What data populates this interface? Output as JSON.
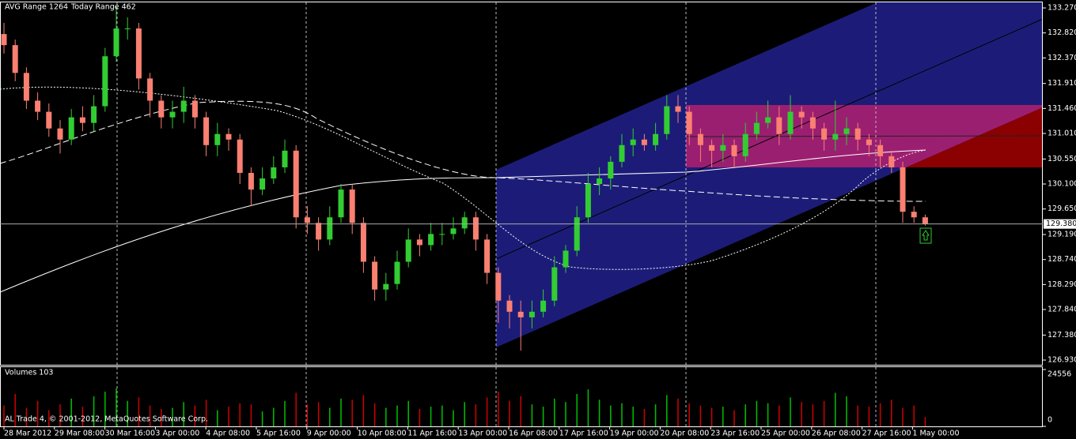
{
  "chart_data": {
    "type": "candlestick",
    "header": [
      "AVG Range 1264",
      "Today Range 462"
    ],
    "volume_title": "Volumes 103",
    "copyright": "AL Trade 4, © 2001-2012, MetaQuotes Software Corp.",
    "x_labels": [
      "28 Mar 2012",
      "29 Mar 08:00",
      "30 Mar 16:00",
      "3 Apr 00:00",
      "4 Apr 08:00",
      "5 Apr 16:00",
      "9 Apr 00:00",
      "10 Apr 08:00",
      "11 Apr 16:00",
      "13 Apr 00:00",
      "16 Apr 08:00",
      "17 Apr 16:00",
      "19 Apr 00:00",
      "20 Apr 08:00",
      "23 Apr 16:00",
      "25 Apr 00:00",
      "26 Apr 08:00",
      "27 Apr 16:00",
      "1 May 00:00"
    ],
    "open": [
      132.8,
      132.6,
      132.1,
      131.6,
      131.4,
      131.1,
      130.9,
      131.3,
      131.2,
      131.5,
      132.4,
      132.9,
      132.9,
      132.0,
      131.6,
      131.3,
      131.4,
      131.6,
      131.3,
      130.8,
      131.0,
      130.9,
      130.3,
      130.0,
      130.2,
      130.4,
      130.7,
      129.5,
      129.4,
      129.1,
      129.5,
      130.0,
      129.4,
      128.7,
      128.2,
      128.3,
      128.7,
      129.1,
      129.0,
      129.2,
      129.2,
      129.3,
      129.5,
      129.1,
      128.5,
      128.0,
      127.8,
      127.7,
      127.8,
      128.0,
      128.6,
      128.9,
      129.5,
      130.1,
      130.2,
      130.5,
      130.8,
      130.9,
      130.8,
      131.0,
      131.5,
      131.4,
      131.0,
      130.8,
      130.7,
      130.8,
      130.6,
      131.0,
      131.2,
      131.3,
      131.0,
      131.4,
      131.3,
      131.1,
      130.9,
      131.0,
      131.1,
      130.9,
      130.8,
      130.6,
      130.4,
      129.6,
      129.5
    ],
    "high": [
      133.0,
      132.7,
      132.2,
      131.75,
      131.55,
      131.25,
      131.45,
      131.5,
      131.7,
      132.55,
      133.3,
      133.1,
      133.0,
      132.1,
      131.7,
      131.6,
      131.85,
      131.7,
      131.4,
      131.2,
      131.1,
      131.0,
      130.4,
      130.4,
      130.6,
      130.9,
      130.8,
      129.7,
      129.5,
      129.7,
      130.1,
      130.1,
      129.5,
      128.8,
      128.5,
      128.9,
      129.3,
      129.2,
      129.4,
      129.4,
      129.5,
      129.6,
      129.6,
      129.2,
      128.6,
      128.1,
      128.0,
      128.0,
      128.2,
      128.8,
      129.0,
      129.7,
      130.3,
      130.4,
      130.6,
      131.0,
      131.1,
      131.0,
      131.2,
      131.7,
      131.7,
      131.5,
      131.1,
      130.9,
      131.0,
      130.9,
      131.2,
      131.4,
      131.6,
      131.5,
      131.7,
      131.5,
      131.4,
      131.2,
      131.6,
      131.3,
      131.2,
      131.0,
      130.9,
      130.7,
      130.5,
      129.7,
      129.55
    ],
    "low": [
      132.45,
      131.95,
      131.45,
      131.25,
      130.95,
      130.65,
      130.8,
      131.05,
      131.05,
      131.4,
      132.3,
      132.7,
      131.8,
      131.3,
      131.1,
      131.1,
      131.2,
      131.1,
      130.6,
      130.6,
      130.7,
      130.1,
      129.7,
      129.9,
      130.1,
      130.3,
      129.3,
      129.2,
      128.9,
      129.0,
      129.4,
      129.2,
      128.5,
      128.0,
      128.0,
      128.2,
      128.6,
      128.8,
      128.9,
      129.0,
      129.1,
      129.2,
      128.9,
      128.3,
      127.6,
      127.5,
      127.1,
      127.5,
      127.7,
      127.9,
      128.5,
      128.8,
      129.4,
      129.9,
      130.0,
      130.4,
      130.6,
      130.7,
      130.7,
      130.9,
      131.2,
      130.8,
      130.5,
      130.4,
      130.5,
      130.4,
      130.5,
      130.9,
      131.1,
      130.8,
      130.9,
      131.1,
      130.9,
      130.7,
      130.7,
      130.8,
      130.7,
      130.6,
      130.4,
      130.3,
      129.4,
      129.4,
      129.35
    ],
    "close": [
      132.6,
      132.1,
      131.6,
      131.4,
      131.1,
      130.9,
      131.3,
      131.2,
      131.5,
      132.4,
      132.9,
      132.9,
      132.0,
      131.6,
      131.3,
      131.4,
      131.6,
      131.3,
      130.8,
      131.0,
      130.9,
      130.3,
      130.0,
      130.2,
      130.4,
      130.7,
      129.5,
      129.4,
      129.1,
      129.5,
      130.0,
      129.4,
      128.7,
      128.2,
      128.3,
      128.7,
      129.1,
      129.0,
      129.2,
      129.2,
      129.3,
      129.5,
      129.1,
      128.5,
      128.0,
      127.8,
      127.7,
      127.8,
      128.0,
      128.6,
      128.9,
      129.5,
      130.1,
      130.2,
      130.5,
      130.8,
      130.9,
      130.8,
      131.0,
      131.5,
      131.4,
      131.0,
      130.8,
      130.7,
      130.8,
      130.6,
      131.0,
      131.2,
      131.3,
      131.0,
      131.4,
      131.3,
      131.1,
      130.9,
      131.0,
      131.1,
      130.9,
      130.8,
      130.6,
      130.4,
      129.6,
      129.5,
      129.38
    ],
    "volume": [
      9000,
      14000,
      8000,
      11000,
      7000,
      9500,
      12000,
      8500,
      13000,
      15000,
      16500,
      11000,
      12500,
      9000,
      7500,
      8000,
      10500,
      9000,
      11500,
      7000,
      8500,
      10000,
      9500,
      6500,
      8000,
      11000,
      14500,
      9500,
      10500,
      8000,
      12000,
      11500,
      13500,
      10000,
      8000,
      9000,
      11000,
      7500,
      8500,
      9000,
      7000,
      10500,
      9500,
      12500,
      15000,
      11000,
      13000,
      9500,
      8500,
      12000,
      10500,
      14000,
      16000,
      11500,
      9000,
      10000,
      8500,
      7500,
      9500,
      13500,
      12000,
      10000,
      9000,
      8000,
      8500,
      7000,
      9500,
      11000,
      10000,
      9000,
      12500,
      10500,
      9500,
      11000,
      14500,
      13000,
      9000,
      8500,
      10000,
      11500,
      8000,
      9000,
      4000
    ],
    "up_color": "#32cd32",
    "down_color": "#fa8072",
    "ylim": [
      126.845,
      133.37
    ],
    "yticks": [
      {
        "value": 133.27,
        "label": "133.270"
      },
      {
        "value": 132.82,
        "label": "132.820"
      },
      {
        "value": 132.37,
        "label": "132.370"
      },
      {
        "value": 131.91,
        "label": "131.910"
      },
      {
        "value": 131.46,
        "label": "131.460"
      },
      {
        "value": 131.01,
        "label": "131.010"
      },
      {
        "value": 130.55,
        "label": "130.550"
      },
      {
        "value": 130.1,
        "label": "130.100"
      },
      {
        "value": 129.65,
        "label": "129.650"
      },
      {
        "value": 129.19,
        "label": "129.190"
      },
      {
        "value": 128.74,
        "label": "128.740"
      },
      {
        "value": 128.29,
        "label": "128.290"
      },
      {
        "value": 127.84,
        "label": "127.840"
      },
      {
        "value": 127.38,
        "label": "127.380"
      },
      {
        "value": 126.93,
        "label": "126.930"
      }
    ],
    "current_price": {
      "value": 129.38,
      "label": "129.380"
    },
    "vlim": [
      0,
      24556
    ],
    "vticks": [
      24556,
      0
    ]
  }
}
